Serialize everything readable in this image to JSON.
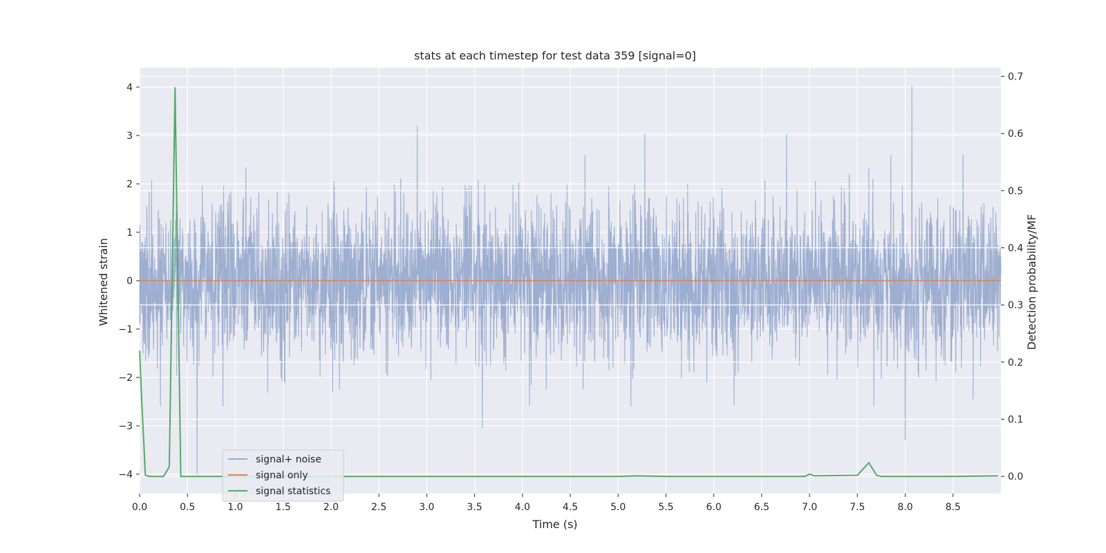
{
  "chart_data": {
    "type": "line",
    "title": "stats at each timestep for test data 359 [signal=0]",
    "xlabel": "Time (s)",
    "ylabel_left": "Whitened strain",
    "ylabel_right": "Detection probability/MF",
    "xlim": [
      0.0,
      9.0
    ],
    "ylim_left": [
      -4.4,
      4.4
    ],
    "ylim_right": [
      -0.03,
      0.715
    ],
    "x_ticks": [
      "0.0",
      "0.5",
      "1.0",
      "1.5",
      "2.0",
      "2.5",
      "3.0",
      "3.5",
      "4.0",
      "4.5",
      "5.0",
      "5.5",
      "6.0",
      "6.5",
      "7.0",
      "7.5",
      "8.0",
      "8.5"
    ],
    "y_ticks_left": [
      "−4",
      "−3",
      "−2",
      "−1",
      "0",
      "1",
      "2",
      "3",
      "4"
    ],
    "y_ticks_right": [
      "0.0",
      "0.1",
      "0.2",
      "0.3",
      "0.4",
      "0.5",
      "0.6",
      "0.7"
    ],
    "grid": true,
    "legend_position": "lower-left",
    "series": [
      {
        "name": "signal+ noise",
        "axis": "left",
        "color": "#99abcd",
        "description_values": "gaussian-like whitened noise, amplitude mostly within ±2, extremes ~ -4.0 to 4.02",
        "peaks": [
          {
            "x": 0.6,
            "y": -4.0
          },
          {
            "x": 2.9,
            "y": 3.2
          },
          {
            "x": 3.58,
            "y": -3.05
          },
          {
            "x": 5.28,
            "y": 3.05
          },
          {
            "x": 6.76,
            "y": 3.05
          },
          {
            "x": 8.0,
            "y": -3.3
          },
          {
            "x": 8.07,
            "y": 4.02
          }
        ]
      },
      {
        "name": "signal only",
        "axis": "left",
        "color": "#dd8452",
        "x": [
          0.0,
          9.0
        ],
        "y": [
          0.0,
          0.0
        ]
      },
      {
        "name": "signal statistics",
        "axis": "right",
        "color": "#55a868",
        "x": [
          0.0,
          0.02,
          0.06,
          0.1,
          0.25,
          0.31,
          0.37,
          0.43,
          0.5,
          1.0,
          2.0,
          3.0,
          4.0,
          5.0,
          5.2,
          5.5,
          6.0,
          6.5,
          6.95,
          7.0,
          7.05,
          7.5,
          7.62,
          7.7,
          7.75,
          8.0,
          8.5,
          8.97
        ],
        "y": [
          0.22,
          0.14,
          0.002,
          0.0,
          0.0,
          0.017,
          0.68,
          0.0,
          0.0,
          0.0,
          0.0,
          0.0,
          0.0,
          0.0,
          0.001,
          0.0,
          0.0,
          0.0,
          0.0,
          0.004,
          0.001,
          0.002,
          0.024,
          0.002,
          0.0,
          0.0,
          0.0,
          0.001
        ]
      }
    ]
  }
}
